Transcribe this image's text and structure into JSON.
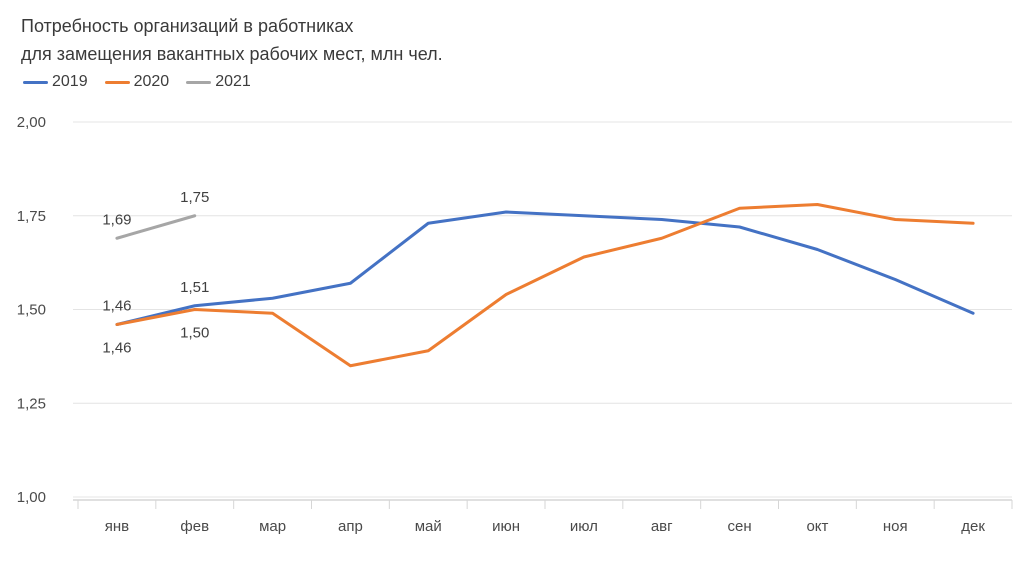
{
  "chart": {
    "title_line1": "Потребность организаций в работниках",
    "title_line2": "для замещения вакантных рабочих мест, млн чел.",
    "background": "#ffffff",
    "title_color": "#3a3a3a"
  },
  "chart_data": {
    "type": "line",
    "title": "Потребность организаций в работниках для замещения вакантных рабочих мест, млн чел.",
    "xlabel": "",
    "ylabel": "",
    "categories": [
      "янв",
      "фев",
      "мар",
      "апр",
      "май",
      "июн",
      "июл",
      "авг",
      "сен",
      "окт",
      "ноя",
      "дек"
    ],
    "series": [
      {
        "name": "2019",
        "color": "#4472C4",
        "values": [
          1.46,
          1.51,
          1.53,
          1.57,
          1.73,
          1.76,
          1.75,
          1.74,
          1.72,
          1.66,
          1.58,
          1.49
        ]
      },
      {
        "name": "2020",
        "color": "#ED7D31",
        "values": [
          1.46,
          1.5,
          1.49,
          1.35,
          1.39,
          1.54,
          1.64,
          1.69,
          1.77,
          1.78,
          1.74,
          1.73
        ]
      },
      {
        "name": "2021",
        "color": "#A6A6A6",
        "values": [
          1.69,
          1.75
        ]
      }
    ],
    "y_axis": {
      "min": 1.0,
      "max": 2.0,
      "tick_step": 0.25,
      "tick_labels": [
        "1,00",
        "1,25",
        "1,50",
        "1,75",
        "2,00"
      ]
    },
    "ylim": [
      1.0,
      2.0
    ],
    "grid": "horizontal",
    "legend_position": "top-left",
    "point_labels": [
      {
        "series": "2021",
        "index": 0,
        "text": "1,69",
        "position": "above"
      },
      {
        "series": "2021",
        "index": 1,
        "text": "1,75",
        "position": "above"
      },
      {
        "series": "2019",
        "index": 0,
        "text": "1,46",
        "position": "above"
      },
      {
        "series": "2019",
        "index": 1,
        "text": "1,51",
        "position": "above"
      },
      {
        "series": "2020",
        "index": 0,
        "text": "1,46",
        "position": "below"
      },
      {
        "series": "2020",
        "index": 1,
        "text": "1,50",
        "position": "below"
      }
    ]
  }
}
